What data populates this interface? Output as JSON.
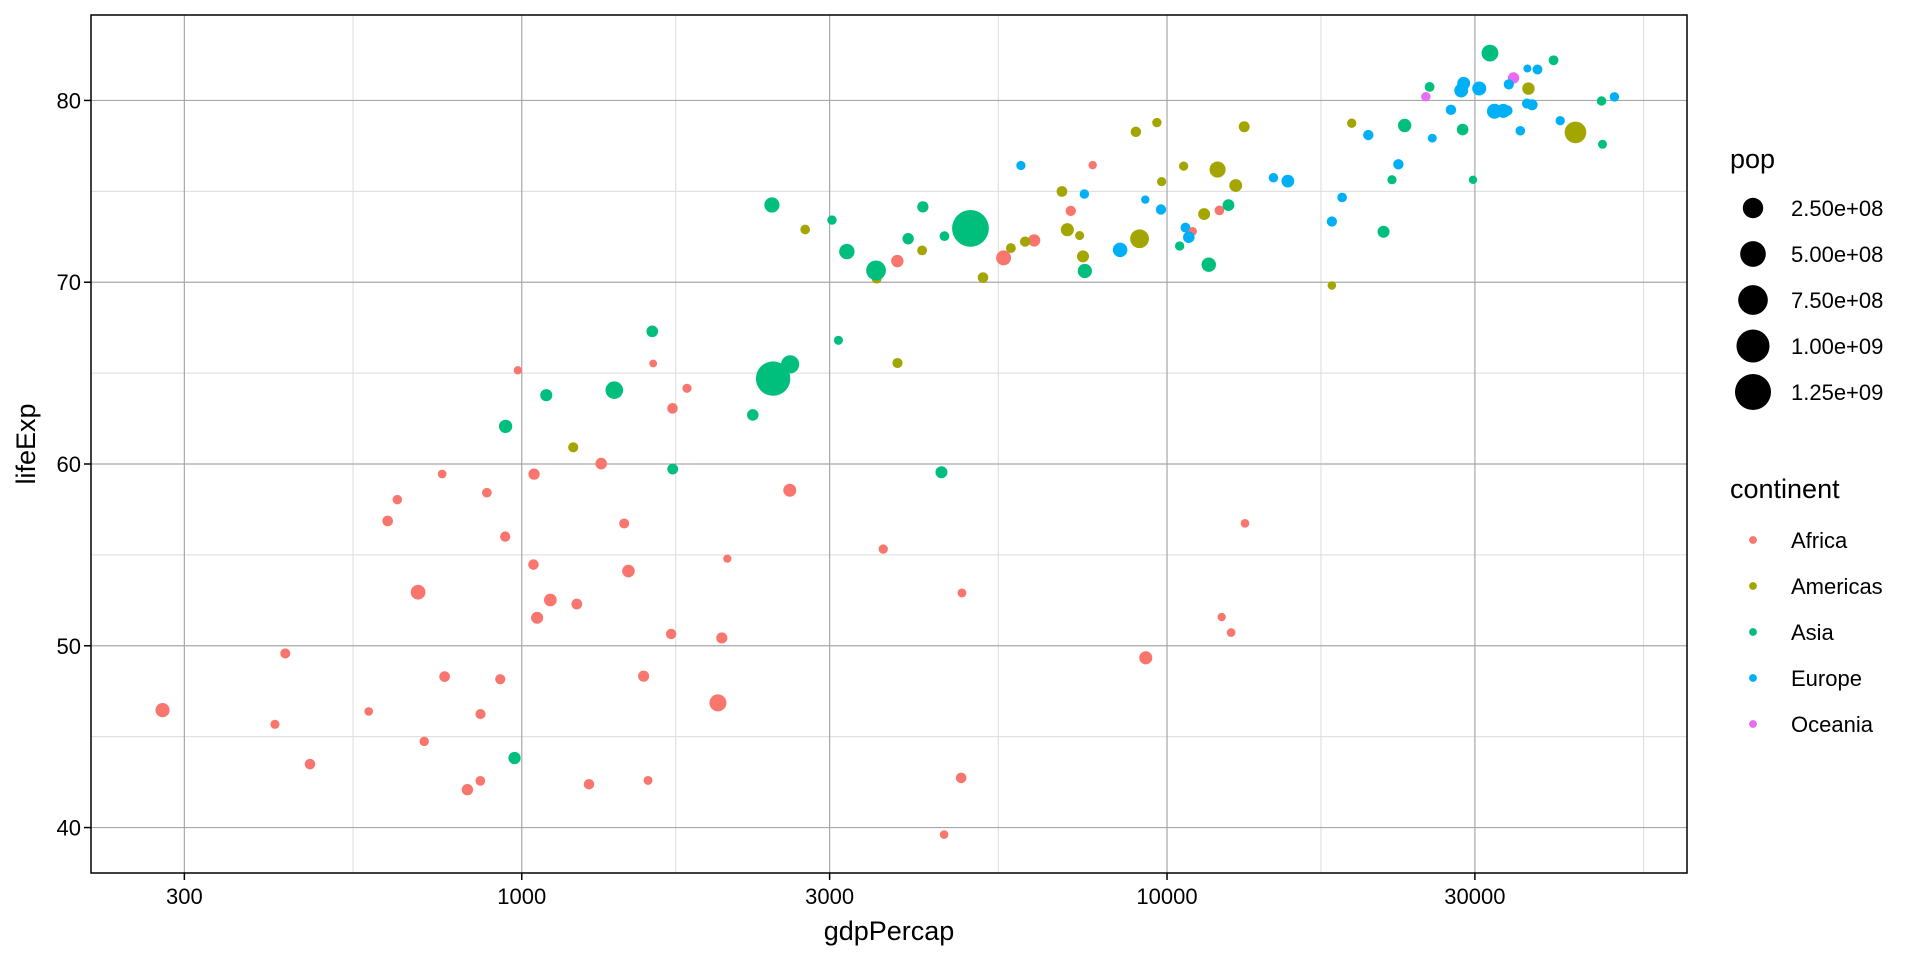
{
  "chart_data": {
    "type": "scatter",
    "title": "",
    "xlabel": "gdpPercap",
    "ylabel": "lifeExp",
    "x_scale": "log10",
    "xlim": [
      215,
      63950
    ],
    "ylim": [
      37.5,
      84.7
    ],
    "x_ticks": [
      300,
      1000,
      3000,
      10000,
      30000
    ],
    "x_tick_labels": [
      "300",
      "1000",
      "3000",
      "10000",
      "30000"
    ],
    "x_minor_ticks": [
      547.7,
      1732,
      5477,
      17321,
      54772
    ],
    "y_ticks": [
      40,
      50,
      60,
      70,
      80
    ],
    "y_tick_labels": [
      "40",
      "50",
      "60",
      "70",
      "80"
    ],
    "y_minor_ticks": [
      45,
      55,
      65,
      75
    ],
    "grid": true,
    "legend_placement": "right",
    "size_legend": {
      "title": "pop",
      "breaks": [
        250000000,
        500000000,
        750000000,
        1000000000,
        1250000000
      ],
      "labels": [
        "2.50e+08",
        "5.00e+08",
        "7.50e+08",
        "1.00e+09",
        "1.25e+09"
      ],
      "color": "#000000"
    },
    "color_legend": {
      "title": "continent",
      "entries": [
        {
          "label": "Africa",
          "color": "#F8766D"
        },
        {
          "label": "Americas",
          "color": "#A3A500"
        },
        {
          "label": "Asia",
          "color": "#00BF7D"
        },
        {
          "label": "Europe",
          "color": "#00B0F6"
        },
        {
          "label": "Oceania",
          "color": "#E76BF3"
        }
      ]
    },
    "point_fields": [
      "gdpPercap",
      "lifeExp",
      "pop",
      "continent"
    ],
    "points": [
      [
        974.58,
        43.828,
        31889923,
        "Asia"
      ],
      [
        5937.03,
        76.423,
        3600523,
        "Europe"
      ],
      [
        6223.37,
        72.301,
        33333216,
        "Africa"
      ],
      [
        4797.23,
        42.731,
        12420476,
        "Africa"
      ],
      [
        12779.38,
        75.32,
        40301927,
        "Americas"
      ],
      [
        34435.37,
        81.235,
        20434176,
        "Oceania"
      ],
      [
        36126.49,
        79.829,
        8199783,
        "Europe"
      ],
      [
        29796.05,
        75.635,
        708573,
        "Asia"
      ],
      [
        1391.25,
        64.062,
        150448339,
        "Asia"
      ],
      [
        33692.61,
        79.441,
        10392226,
        "Europe"
      ],
      [
        1441.28,
        56.728,
        8078314,
        "Africa"
      ],
      [
        3822.14,
        65.554,
        9119152,
        "Americas"
      ],
      [
        7446.3,
        74.852,
        4552198,
        "Europe"
      ],
      [
        12569.85,
        50.728,
        1639131,
        "Africa"
      ],
      [
        9065.8,
        72.39,
        190010647,
        "Americas"
      ],
      [
        10680.79,
        73.005,
        7322858,
        "Europe"
      ],
      [
        1217.03,
        52.295,
        14326203,
        "Africa"
      ],
      [
        430.07,
        49.58,
        8390505,
        "Africa"
      ],
      [
        1713.78,
        59.723,
        14131858,
        "Asia"
      ],
      [
        2042.1,
        50.43,
        17696293,
        "Africa"
      ],
      [
        36319.24,
        80.653,
        33390141,
        "Americas"
      ],
      [
        706.02,
        44.741,
        4369038,
        "Africa"
      ],
      [
        1704.06,
        50.651,
        10238807,
        "Africa"
      ],
      [
        13171.64,
        78.553,
        16284741,
        "Americas"
      ],
      [
        4959.11,
        72.961,
        1318683096,
        "Asia"
      ],
      [
        7006.58,
        72.889,
        44227550,
        "Americas"
      ],
      [
        986.15,
        65.152,
        710960,
        "Africa"
      ],
      [
        277.55,
        46.462,
        64606759,
        "Africa"
      ],
      [
        3632.56,
        55.322,
        3800610,
        "Africa"
      ],
      [
        9645.06,
        78.782,
        4133884,
        "Americas"
      ],
      [
        1544.75,
        48.328,
        18013409,
        "Africa"
      ],
      [
        14619.22,
        75.748,
        4493312,
        "Europe"
      ],
      [
        8948.1,
        78.273,
        11416987,
        "Americas"
      ],
      [
        22833.31,
        76.486,
        10228744,
        "Europe"
      ],
      [
        35278.42,
        78.332,
        5468120,
        "Europe"
      ],
      [
        2082.48,
        54.791,
        496374,
        "Africa"
      ],
      [
        6025.37,
        72.235,
        9319622,
        "Americas"
      ],
      [
        6873.26,
        74.994,
        13755680,
        "Americas"
      ],
      [
        5581.18,
        71.338,
        80264543,
        "Africa"
      ],
      [
        5728.35,
        71.878,
        6939688,
        "Americas"
      ],
      [
        12154.09,
        51.579,
        551201,
        "Africa"
      ],
      [
        641.37,
        58.04,
        4906585,
        "Africa"
      ],
      [
        690.81,
        52.947,
        76511887,
        "Africa"
      ],
      [
        33207.08,
        79.313,
        5238460,
        "Europe"
      ],
      [
        30470.02,
        80.657,
        61083916,
        "Europe"
      ],
      [
        13206.48,
        56.735,
        1454867,
        "Africa"
      ],
      [
        752.75,
        59.448,
        1688359,
        "Africa"
      ],
      [
        32170.37,
        79.406,
        82400996,
        "Europe"
      ],
      [
        1327.61,
        60.022,
        22873338,
        "Africa"
      ],
      [
        27538.41,
        79.483,
        10706290,
        "Europe"
      ],
      [
        5186.05,
        70.259,
        12572928,
        "Americas"
      ],
      [
        942.65,
        56.007,
        9947814,
        "Africa"
      ],
      [
        579.23,
        46.388,
        1472041,
        "Africa"
      ],
      [
        1201.64,
        60.916,
        8502814,
        "Americas"
      ],
      [
        3548.33,
        70.198,
        7483763,
        "Americas"
      ],
      [
        39724.98,
        82.208,
        6980412,
        "Asia"
      ],
      [
        18008.94,
        73.338,
        9956108,
        "Europe"
      ],
      [
        36180.79,
        81.757,
        301931,
        "Europe"
      ],
      [
        2452.21,
        64.698,
        1110396331,
        "Asia"
      ],
      [
        3540.65,
        70.65,
        223547000,
        "Asia"
      ],
      [
        11605.71,
        70.964,
        69453570,
        "Asia"
      ],
      [
        4471.06,
        59.545,
        27499638,
        "Asia"
      ],
      [
        40676.0,
        78.885,
        4109086,
        "Europe"
      ],
      [
        25523.28,
        80.745,
        6426679,
        "Asia"
      ],
      [
        28569.72,
        80.546,
        58147733,
        "Europe"
      ],
      [
        7320.88,
        72.567,
        2780132,
        "Americas"
      ],
      [
        31656.07,
        82.603,
        127467972,
        "Asia"
      ],
      [
        4519.46,
        72.535,
        6053193,
        "Asia"
      ],
      [
        1463.25,
        54.11,
        35610177,
        "Africa"
      ],
      [
        1593.07,
        67.297,
        23301725,
        "Asia"
      ],
      [
        23348.14,
        78.623,
        49044790,
        "Asia"
      ],
      [
        47306.99,
        77.588,
        2505559,
        "Asia"
      ],
      [
        10461.06,
        71.993,
        3921278,
        "Asia"
      ],
      [
        1569.33,
        42.592,
        2012649,
        "Africa"
      ],
      [
        414.51,
        45.678,
        3193942,
        "Africa"
      ],
      [
        12057.5,
        73.952,
        6036914,
        "Africa"
      ],
      [
        1044.77,
        59.443,
        19167654,
        "Africa"
      ],
      [
        759.35,
        48.303,
        13327079,
        "Africa"
      ],
      [
        12451.66,
        74.241,
        24821286,
        "Asia"
      ],
      [
        1042.58,
        54.467,
        12031795,
        "Africa"
      ],
      [
        1803.15,
        64.164,
        3270065,
        "Africa"
      ],
      [
        10956.99,
        72.801,
        1250882,
        "Africa"
      ],
      [
        11977.57,
        76.195,
        108700891,
        "Americas"
      ],
      [
        3095.77,
        66.803,
        2874127,
        "Asia"
      ],
      [
        9253.9,
        74.543,
        684736,
        "Europe"
      ],
      [
        3820.18,
        71.164,
        33757175,
        "Africa"
      ],
      [
        823.69,
        42.082,
        19951656,
        "Africa"
      ],
      [
        944.0,
        62.069,
        47761980,
        "Asia"
      ],
      [
        4811.06,
        52.906,
        2055080,
        "Africa"
      ],
      [
        1091.36,
        63.785,
        28901790,
        "Asia"
      ],
      [
        36797.93,
        79.762,
        16570613,
        "Europe"
      ],
      [
        25185.01,
        80.204,
        4115771,
        "Oceania"
      ],
      [
        2749.32,
        72.899,
        5675356,
        "Americas"
      ],
      [
        619.68,
        56.867,
        12894865,
        "Africa"
      ],
      [
        2013.98,
        46.859,
        135031164,
        "Africa"
      ],
      [
        49357.19,
        80.196,
        4627926,
        "Europe"
      ],
      [
        22316.19,
        75.64,
        3204897,
        "Asia"
      ],
      [
        2605.95,
        65.483,
        169270617,
        "Asia"
      ],
      [
        9809.19,
        75.537,
        3242173,
        "Americas"
      ],
      [
        4172.84,
        71.752,
        6667147,
        "Americas"
      ],
      [
        7408.91,
        71.421,
        28674757,
        "Americas"
      ],
      [
        3190.48,
        71.688,
        91077287,
        "Asia"
      ],
      [
        15389.92,
        75.563,
        38518241,
        "Europe"
      ],
      [
        20509.65,
        78.098,
        10642836,
        "Europe"
      ],
      [
        19328.71,
        78.746,
        3942491,
        "Americas"
      ],
      [
        7670.12,
        76.442,
        798094,
        "Africa"
      ],
      [
        10808.48,
        72.476,
        22276056,
        "Europe"
      ],
      [
        863.09,
        46.242,
        8860588,
        "Africa"
      ],
      [
        1598.44,
        65.528,
        199579,
        "Africa"
      ],
      [
        21654.83,
        72.777,
        27601038,
        "Asia"
      ],
      [
        1712.47,
        63.062,
        12267493,
        "Africa"
      ],
      [
        9786.53,
        74.002,
        10150265,
        "Europe"
      ],
      [
        862.54,
        42.568,
        6144562,
        "Africa"
      ],
      [
        47143.18,
        79.972,
        4553009,
        "Asia"
      ],
      [
        18678.31,
        74.663,
        5447502,
        "Europe"
      ],
      [
        25768.26,
        77.926,
        2009245,
        "Europe"
      ],
      [
        926.14,
        48.159,
        9118773,
        "Africa"
      ],
      [
        9269.66,
        49.339,
        43997828,
        "Africa"
      ],
      [
        28821.06,
        80.941,
        40448191,
        "Europe"
      ],
      [
        3970.1,
        72.396,
        20378239,
        "Asia"
      ],
      [
        2602.39,
        58.556,
        42292929,
        "Africa"
      ],
      [
        4513.48,
        39.613,
        1133066,
        "Africa"
      ],
      [
        33859.75,
        80.884,
        9031088,
        "Europe"
      ],
      [
        37506.42,
        81.701,
        7554661,
        "Europe"
      ],
      [
        4184.55,
        74.143,
        19314747,
        "Asia"
      ],
      [
        28718.28,
        78.4,
        23174294,
        "Asia"
      ],
      [
        1107.48,
        52.517,
        38139640,
        "Africa"
      ],
      [
        7458.4,
        70.616,
        65068149,
        "Asia"
      ],
      [
        882.97,
        58.42,
        5701579,
        "Africa"
      ],
      [
        18008.51,
        69.819,
        1056608,
        "Americas"
      ],
      [
        7092.92,
        73.923,
        10276158,
        "Africa"
      ],
      [
        8458.28,
        71.777,
        71158647,
        "Europe"
      ],
      [
        1056.38,
        51.542,
        29170398,
        "Africa"
      ],
      [
        33203.26,
        79.425,
        60776238,
        "Europe"
      ],
      [
        42951.65,
        78.242,
        301139947,
        "Americas"
      ],
      [
        10611.46,
        76.384,
        3447496,
        "Americas"
      ],
      [
        11415.81,
        73.747,
        26084662,
        "Americas"
      ],
      [
        2441.58,
        74.249,
        85262356,
        "Asia"
      ],
      [
        3025.35,
        73.422,
        4018332,
        "Asia"
      ],
      [
        2280.77,
        62.698,
        22211743,
        "Asia"
      ],
      [
        1271.21,
        42.384,
        11746035,
        "Africa"
      ],
      [
        469.71,
        43.487,
        12311143,
        "Africa"
      ]
    ]
  }
}
